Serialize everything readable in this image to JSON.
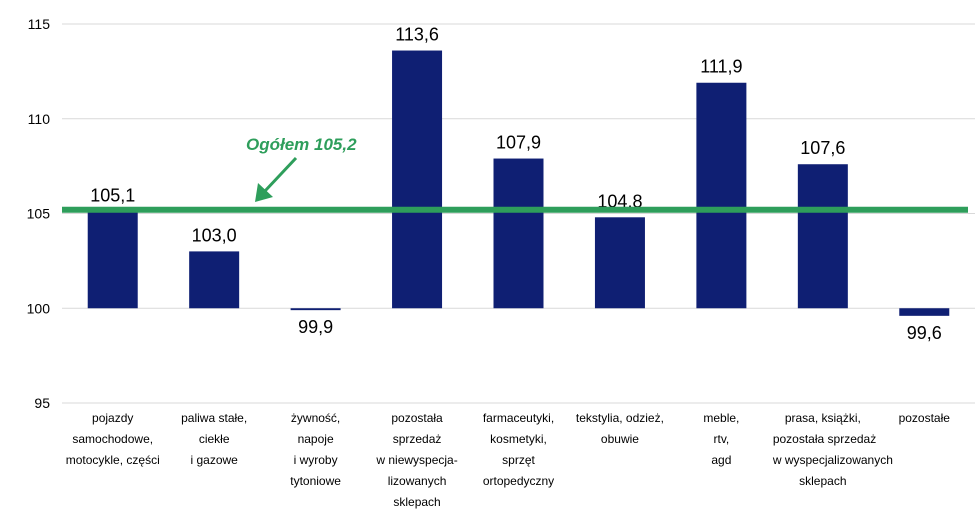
{
  "chart_data": {
    "type": "bar",
    "categories": [
      [
        "pojazdy",
        "samochodowe,",
        "motocykle, części"
      ],
      [
        "paliwa stałe,",
        "ciekłe",
        "i gazowe"
      ],
      [
        "żywność,",
        "napoje",
        "i wyroby",
        "tytoniowe"
      ],
      [
        "pozostała",
        "sprzedaż",
        "w niewyspecja-",
        "lizowanych",
        "sklepach"
      ],
      [
        "farmaceutyki,",
        "kosmetyki,",
        "sprzęt",
        "ortopedyczny"
      ],
      [
        "tekstylia, odzież,",
        "obuwie"
      ],
      [
        "meble,",
        "rtv,",
        "agd"
      ],
      [
        "prasa, książki,",
        "pozostała sprzedaż",
        "w wyspecjalizowanych",
        "sklepach"
      ],
      [
        "pozostałe"
      ]
    ],
    "values": [
      105.1,
      103.0,
      99.9,
      113.6,
      107.9,
      104.8,
      111.9,
      107.6,
      99.6
    ],
    "value_labels": [
      "105,1",
      "103,0",
      "99,9",
      "113,6",
      "107,9",
      "104,8",
      "111,9",
      "107,6",
      "99,6"
    ],
    "baseline": 100,
    "ylim": [
      95,
      115
    ],
    "yticks": [
      "95",
      "100",
      "105",
      "110",
      "115"
    ],
    "ytick_values": [
      95,
      100,
      105,
      110,
      115
    ],
    "reference_line": {
      "value": 105.2,
      "label": "Ogółem 105,2"
    },
    "grid": true,
    "title": "",
    "xlabel": "",
    "ylabel": "",
    "colors": {
      "bar": "#0f1f73",
      "reference": "#2e9e5b",
      "grid": "#d9d9d9",
      "text": "#000000"
    }
  }
}
